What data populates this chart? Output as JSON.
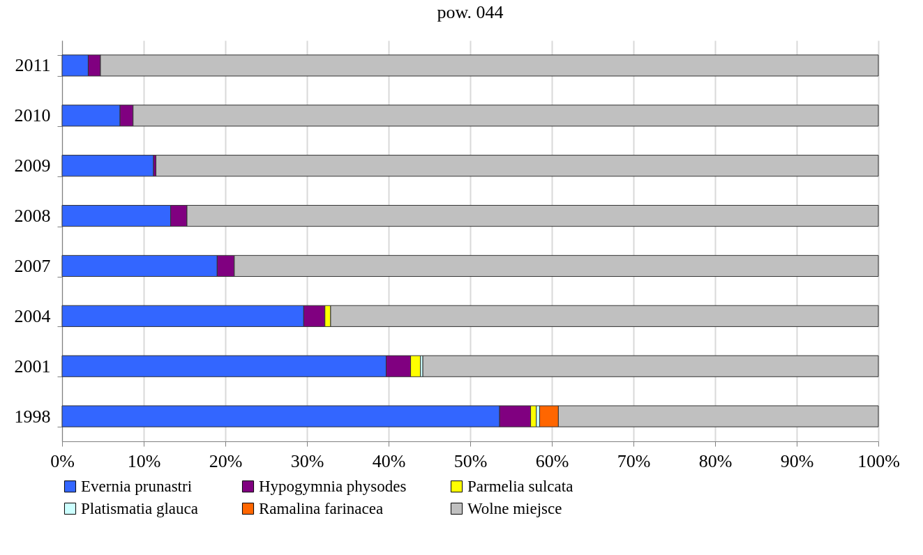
{
  "chart_data": {
    "type": "bar",
    "orientation": "horizontal",
    "stacked": true,
    "title": "pow. 044",
    "categories": [
      "2011",
      "2010",
      "2009",
      "2008",
      "2007",
      "2004",
      "2001",
      "1998"
    ],
    "series": [
      {
        "name": "Evernia prunastri",
        "color": "#3366ff",
        "values": [
          3.2,
          7.1,
          11.2,
          13.3,
          19.0,
          29.6,
          39.7,
          53.6
        ]
      },
      {
        "name": "Hypogymnia physodes",
        "color": "#800080",
        "values": [
          1.5,
          1.6,
          0.3,
          2.0,
          2.1,
          2.6,
          3.0,
          3.8
        ]
      },
      {
        "name": "Parmelia sulcata",
        "color": "#ffff00",
        "values": [
          null,
          null,
          null,
          null,
          null,
          0.7,
          1.2,
          0.7
        ]
      },
      {
        "name": "Platismatia glauca",
        "color": "#ccffff",
        "values": [
          null,
          null,
          null,
          null,
          null,
          null,
          0.3,
          0.4
        ]
      },
      {
        "name": "Ramalina farinacea",
        "color": "#ff6600",
        "values": [
          null,
          null,
          null,
          null,
          null,
          null,
          null,
          2.3
        ]
      },
      {
        "name": "Wolne miejsce",
        "color": "#c0c0c0",
        "values": [
          95.3,
          91.3,
          88.5,
          84.7,
          78.9,
          67.1,
          55.8,
          39.2
        ]
      }
    ],
    "xlim": [
      0,
      100
    ],
    "xticks": [
      {
        "value": 0,
        "label": "0%"
      },
      {
        "value": 10,
        "label": "10%"
      },
      {
        "value": 20,
        "label": "20%"
      },
      {
        "value": 30,
        "label": "30%"
      },
      {
        "value": 40,
        "label": "40%"
      },
      {
        "value": 50,
        "label": "50%"
      },
      {
        "value": 60,
        "label": "60%"
      },
      {
        "value": 70,
        "label": "70%"
      },
      {
        "value": 80,
        "label": "80%"
      },
      {
        "value": 90,
        "label": "90%"
      },
      {
        "value": 100,
        "label": "100%"
      }
    ],
    "grid": "x",
    "legend": "bottom"
  }
}
